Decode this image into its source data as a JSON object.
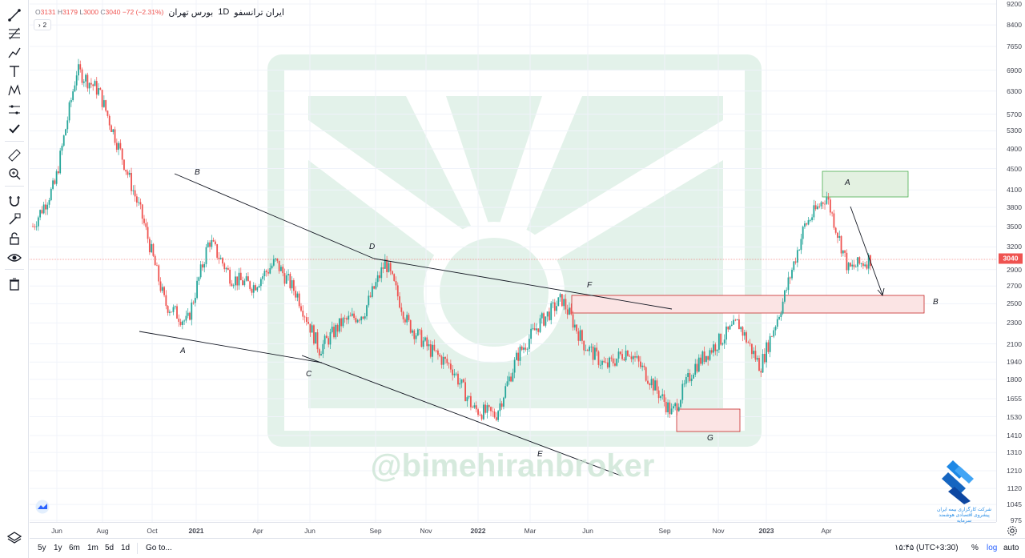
{
  "legend": {
    "exchange": "بورس تهران",
    "interval": "1D",
    "symbol": "ایران ترانسفو",
    "ohlc_text": "O3131 H3179 L3000 C3040 −72 (−2.31%)",
    "o_label": "O",
    "o_value": "3131",
    "h_label": "H",
    "h_value": "3179",
    "l_label": "L",
    "l_value": "3000",
    "c_label": "C",
    "c_value": "3040",
    "change": "−72 (−2.31%)",
    "indicator_count": "2"
  },
  "price_axis": {
    "ticks": [
      "9200",
      "8400",
      "7650",
      "6900",
      "6300",
      "5700",
      "5300",
      "4900",
      "4500",
      "4100",
      "3800",
      "3500",
      "3200",
      "2900",
      "2700",
      "2500",
      "2300",
      "2100",
      "1940",
      "1800",
      "1655",
      "1530",
      "1410",
      "1310",
      "1210",
      "1120",
      "1045",
      "975"
    ],
    "last_price": "3040"
  },
  "time_axis": {
    "ticks": [
      "Jun",
      "Aug",
      "Oct",
      "2021",
      "Apr",
      "Jun",
      "Sep",
      "Nov",
      "2022",
      "Mar",
      "Jun",
      "Sep",
      "Nov",
      "2023",
      "Apr"
    ]
  },
  "bottom_bar": {
    "ranges": [
      "5y",
      "1y",
      "6m",
      "1m",
      "5d",
      "1d"
    ],
    "goto": "Go to...",
    "clock": "۱۵:۴۵ (UTC+3:30)",
    "percent": "%",
    "log": "log",
    "auto": "auto"
  },
  "watermark": "@bimehiranbroker",
  "broker": {
    "name": "شرکت کارگزاری بیمه ایران",
    "tagline": "پیشروی اقتصادی هوشمند سرمایه"
  },
  "annotations": {
    "labels": [
      "B",
      "A",
      "D",
      "C",
      "E",
      "F",
      "G",
      "A",
      "B"
    ]
  },
  "colors": {
    "up": "#26a69a",
    "down": "#ef5350",
    "resistance_zone": "#f8e0e0",
    "support_zone": "#e3f1e1",
    "watermark": "#d4ece0",
    "accent_blue": "#2962ff"
  },
  "icons": {
    "toolbar": [
      "trend-line-icon",
      "pitchfork-icon",
      "path-icon",
      "text-icon",
      "pattern-icon",
      "measure-icon",
      "checkmark-icon",
      "ruler-icon",
      "zoom-in-icon",
      "magnet-icon",
      "lock-draw-icon",
      "lock-icon",
      "eye-icon",
      "trash-icon"
    ]
  },
  "chart_data": {
    "type": "candlestick",
    "symbol": "ایران ترانسفو",
    "interval": "1D",
    "scale": "log",
    "ylim": [
      975,
      9200
    ],
    "last": {
      "open": 3131,
      "high": 3179,
      "low": 3000,
      "close": 3040,
      "change": -72,
      "change_pct": -2.31
    },
    "approx_path": [
      {
        "t": "2020-05",
        "v": 3500
      },
      {
        "t": "2020-06",
        "v": 4200
      },
      {
        "t": "2020-07",
        "v": 6900
      },
      {
        "t": "2020-08",
        "v": 6300
      },
      {
        "t": "2020-09",
        "v": 4800
      },
      {
        "t": "2020-10",
        "v": 3600
      },
      {
        "t": "2020-11",
        "v": 2500
      },
      {
        "t": "2020-12",
        "v": 2300
      },
      {
        "t": "2021-01",
        "v": 3300
      },
      {
        "t": "2021-02",
        "v": 2800
      },
      {
        "t": "2021-03",
        "v": 2700
      },
      {
        "t": "2021-04",
        "v": 3000
      },
      {
        "t": "2021-05",
        "v": 2600
      },
      {
        "t": "2021-06",
        "v": 2050
      },
      {
        "t": "2021-07",
        "v": 2300
      },
      {
        "t": "2021-08",
        "v": 2400
      },
      {
        "t": "2021-09",
        "v": 3000
      },
      {
        "t": "2021-10",
        "v": 2300
      },
      {
        "t": "2021-11",
        "v": 2050
      },
      {
        "t": "2021-12",
        "v": 1900
      },
      {
        "t": "2022-01",
        "v": 1580
      },
      {
        "t": "2022-02",
        "v": 1540
      },
      {
        "t": "2022-03",
        "v": 2000
      },
      {
        "t": "2022-04",
        "v": 2300
      },
      {
        "t": "2022-05",
        "v": 2550
      },
      {
        "t": "2022-06",
        "v": 2100
      },
      {
        "t": "2022-07",
        "v": 1900
      },
      {
        "t": "2022-08",
        "v": 2050
      },
      {
        "t": "2022-09",
        "v": 1800
      },
      {
        "t": "2022-10",
        "v": 1550
      },
      {
        "t": "2022-11",
        "v": 1900
      },
      {
        "t": "2022-12",
        "v": 2100
      },
      {
        "t": "2023-01",
        "v": 2300
      },
      {
        "t": "2023-02",
        "v": 1900
      },
      {
        "t": "2023-03",
        "v": 2500
      },
      {
        "t": "2023-04",
        "v": 3500
      },
      {
        "t": "2023-05",
        "v": 4000
      },
      {
        "t": "2023-06",
        "v": 2900
      },
      {
        "t": "2023-07",
        "v": 3040
      }
    ],
    "zones": [
      {
        "label": "A",
        "low": 3950,
        "high": 4500,
        "kind": "support"
      },
      {
        "label": "B",
        "low": 2400,
        "high": 2600,
        "kind": "resistance"
      },
      {
        "label": "G",
        "low": 1440,
        "high": 1580,
        "kind": "resistance"
      }
    ]
  }
}
